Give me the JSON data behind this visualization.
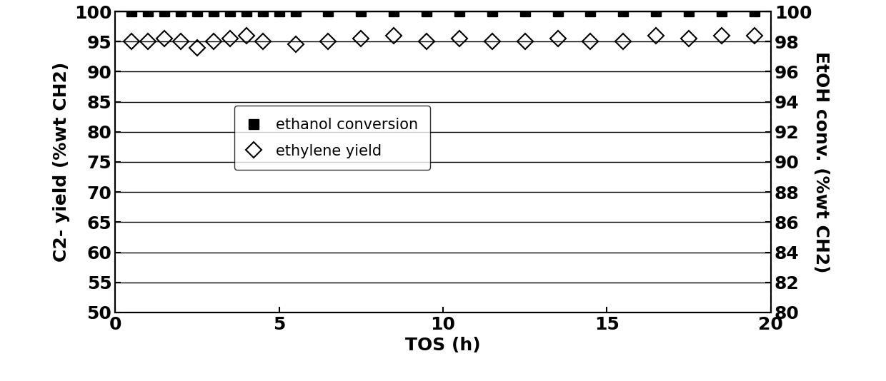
{
  "ethanol_conversion_x": [
    0.5,
    1.0,
    1.5,
    2.0,
    2.5,
    3.0,
    3.5,
    4.0,
    4.5,
    5.0,
    5.5,
    6.5,
    7.5,
    8.5,
    9.5,
    10.5,
    11.5,
    12.5,
    13.5,
    14.5,
    15.5,
    16.5,
    17.5,
    18.5,
    19.5
  ],
  "ethanol_conversion_y": [
    100,
    100,
    100,
    100,
    100,
    100,
    100,
    100,
    100,
    100,
    100,
    100,
    100,
    100,
    100,
    100,
    100,
    100,
    100,
    100,
    100,
    100,
    100,
    100,
    100
  ],
  "ethylene_yield_x": [
    0.5,
    1.0,
    1.5,
    2.0,
    2.5,
    3.0,
    3.5,
    4.0,
    4.5,
    5.5,
    6.5,
    7.5,
    8.5,
    9.5,
    10.5,
    11.5,
    12.5,
    13.5,
    14.5,
    15.5,
    16.5,
    17.5,
    18.5,
    19.5
  ],
  "ethylene_yield_y": [
    95,
    95,
    95.5,
    95,
    94,
    95,
    95.5,
    96,
    95,
    94.5,
    95,
    95.5,
    96,
    95,
    95.5,
    95,
    95,
    95.5,
    95,
    95,
    96,
    95.5,
    96,
    96
  ],
  "xlabel": "TOS (h)",
  "ylabel_left": "C2- yield (%wt CH2)",
  "ylabel_right": "EtOH conv. (%wt CH2)",
  "ylim_left": [
    50,
    100
  ],
  "ylim_right": [
    80,
    100
  ],
  "xlim": [
    0,
    20
  ],
  "yticks_left": [
    50,
    55,
    60,
    65,
    70,
    75,
    80,
    85,
    90,
    95,
    100
  ],
  "yticks_right": [
    80,
    82,
    84,
    86,
    88,
    90,
    92,
    94,
    96,
    98,
    100
  ],
  "xticks": [
    0,
    5,
    10,
    15,
    20
  ],
  "legend_labels": [
    "ethanol conversion",
    "ethylene yield"
  ],
  "background_color": "#ffffff",
  "tick_fontsize": 18,
  "label_fontsize": 18,
  "xlabel_fontsize": 18,
  "legend_fontsize": 15
}
